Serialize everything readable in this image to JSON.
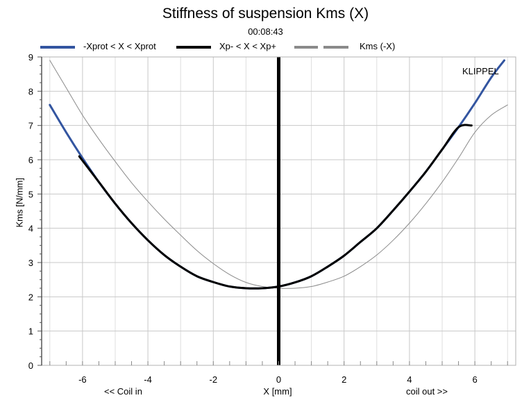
{
  "chart_data": {
    "type": "line",
    "title": "Stiffness of suspension Kms (X)",
    "subtitle": "00:08:43",
    "xlabel": "X [mm]",
    "xlabel_left": "<< Coil in",
    "xlabel_right": "coil out >>",
    "ylabel": "Kms [N/mm]",
    "watermark": "KLIPPEL",
    "xlim": [
      -7.25,
      7.25
    ],
    "ylim": [
      0,
      9
    ],
    "xticks": [
      -6,
      -4,
      -2,
      0,
      2,
      4,
      6
    ],
    "yticks": [
      0,
      1,
      2,
      3,
      4,
      5,
      6,
      7,
      8,
      9
    ],
    "grid": true,
    "legend_position": "top",
    "vertical_marker_x": 0,
    "series": [
      {
        "name": "-Xprot < X < Xprot",
        "color": "#3355a0",
        "x": [
          -7,
          -6.5,
          -6,
          -5.5,
          -5,
          -4.5,
          -4,
          -3.5,
          -3,
          -2.5,
          -2,
          -1.5,
          -1,
          -0.5,
          0,
          0.5,
          1,
          1.5,
          2,
          2.5,
          3,
          3.5,
          4,
          4.5,
          5,
          5.5,
          6,
          6.5,
          6.9
        ],
        "y": [
          7.6,
          6.8,
          6.05,
          5.35,
          4.72,
          4.15,
          3.65,
          3.22,
          2.88,
          2.6,
          2.43,
          2.3,
          2.25,
          2.25,
          2.3,
          2.42,
          2.6,
          2.88,
          3.2,
          3.6,
          4.0,
          4.52,
          5.07,
          5.65,
          6.3,
          6.95,
          7.65,
          8.4,
          8.9
        ]
      },
      {
        "name": "Xp- < X < Xp+",
        "color": "#000000",
        "x": [
          -6.1,
          -5.5,
          -5,
          -4.5,
          -4,
          -3.5,
          -3,
          -2.5,
          -2,
          -1.5,
          -1,
          -0.5,
          0,
          0.5,
          1,
          1.5,
          2,
          2.5,
          3,
          3.5,
          4,
          4.5,
          5,
          5.5,
          5.9
        ],
        "y": [
          6.1,
          5.35,
          4.72,
          4.15,
          3.65,
          3.22,
          2.88,
          2.6,
          2.43,
          2.3,
          2.25,
          2.25,
          2.3,
          2.42,
          2.6,
          2.88,
          3.2,
          3.6,
          4.0,
          4.52,
          5.07,
          5.65,
          6.3,
          6.95,
          7.0
        ]
      },
      {
        "name": "Kms (-X)",
        "color": "#8a8a8a",
        "x": [
          -7,
          -6.5,
          -6,
          -5.5,
          -5,
          -4.5,
          -4,
          -3.5,
          -3,
          -2.5,
          -2,
          -1.5,
          -1,
          -0.5,
          0,
          0.5,
          1,
          1.5,
          2,
          2.5,
          3,
          3.5,
          4,
          4.5,
          5,
          5.5,
          6,
          6.5,
          7
        ],
        "y": [
          8.9,
          8.1,
          7.3,
          6.6,
          5.95,
          5.33,
          4.78,
          4.27,
          3.8,
          3.35,
          2.97,
          2.65,
          2.42,
          2.3,
          2.25,
          2.25,
          2.3,
          2.43,
          2.6,
          2.88,
          3.22,
          3.65,
          4.15,
          4.72,
          5.35,
          6.05,
          6.8,
          7.3,
          7.6
        ]
      }
    ]
  }
}
